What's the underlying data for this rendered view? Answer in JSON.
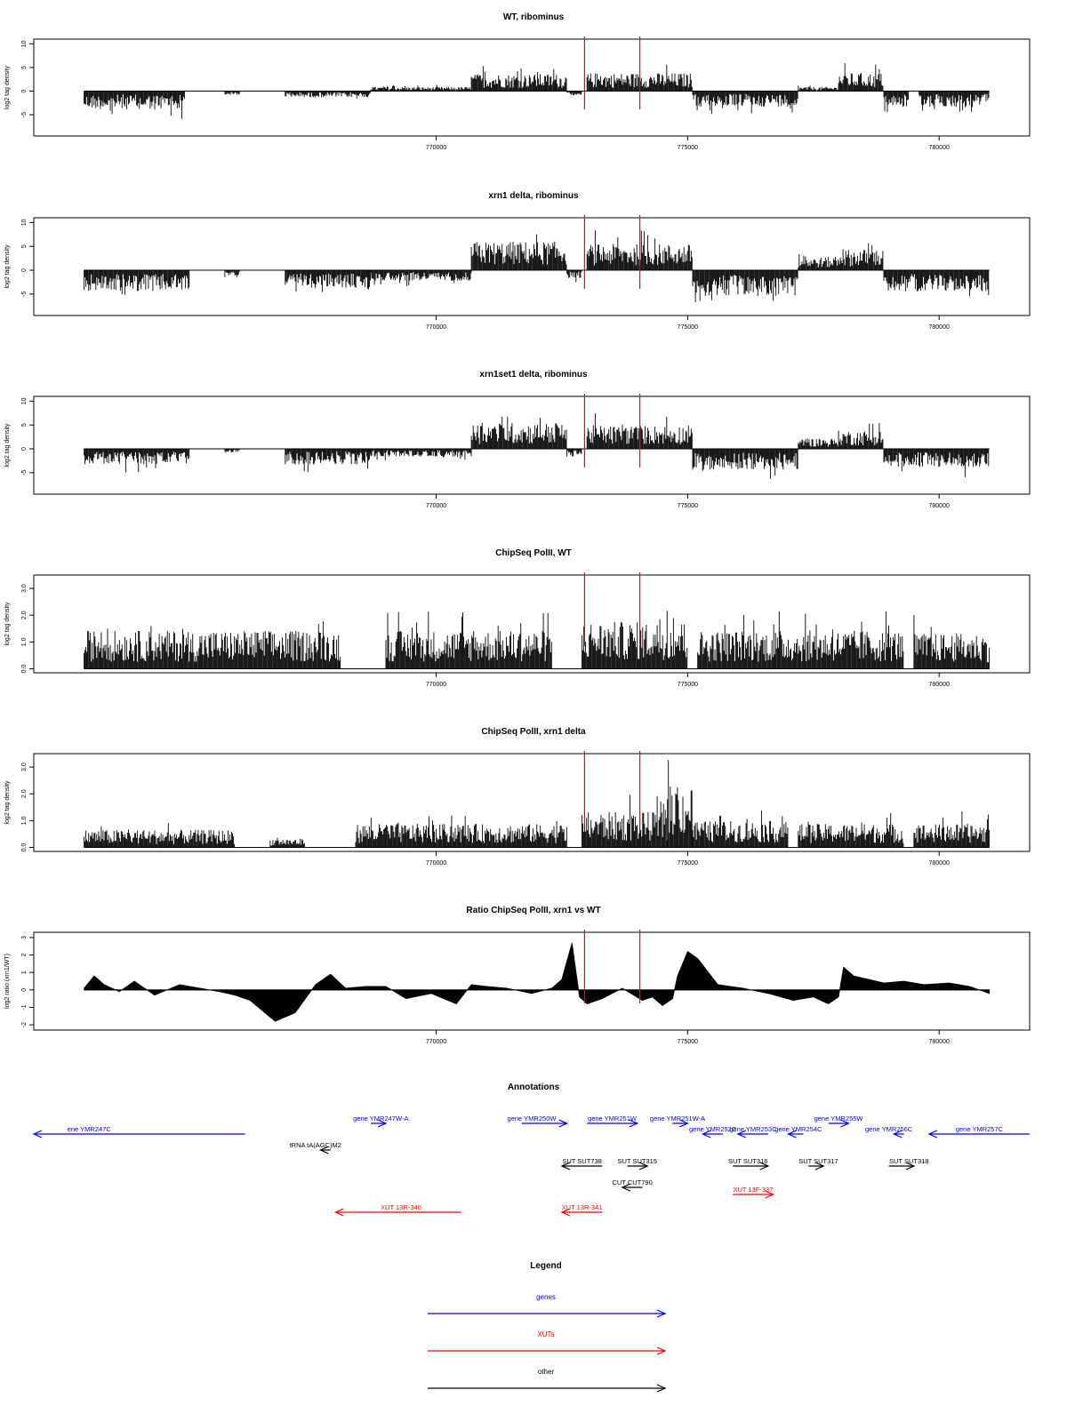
{
  "colors": {
    "marker": "#ff0000",
    "signal": "#000000",
    "gene": "#0000ff",
    "xut": "#ff0000",
    "other": "#000000"
  },
  "x_axis": {
    "range": [
      762000,
      781800
    ],
    "ticks": [
      770000,
      775000,
      780000
    ],
    "tick_labels": [
      "770000",
      "775000",
      "780000"
    ]
  },
  "markers": [
    772950,
    774050
  ],
  "chart_data": [
    {
      "type": "bar",
      "title": "WT, ribominus",
      "ylabel": "log2 tag density",
      "ylim": [
        -9.5,
        11
      ],
      "yticks": [
        10,
        5,
        0,
        -5
      ],
      "yticklabels": [
        "10",
        "5",
        "0",
        "-5"
      ],
      "baseline": 0,
      "segments": [
        {
          "x": [
            763000,
            765000
          ],
          "amp": 3.5,
          "sign": -1
        },
        {
          "x": [
            765800,
            766100
          ],
          "amp": 0.8,
          "sign": -1
        },
        {
          "x": [
            767000,
            768700
          ],
          "amp": 1.2,
          "sign": -1
        },
        {
          "x": [
            768700,
            770700
          ],
          "amp": 0.8,
          "sign": 1
        },
        {
          "x": [
            770700,
            772600
          ],
          "amp": 3.3,
          "sign": 1
        },
        {
          "x": [
            772600,
            772900
          ],
          "amp": 0.8,
          "sign": -1
        },
        {
          "x": [
            773000,
            775100
          ],
          "amp": 3.5,
          "sign": 1
        },
        {
          "x": [
            775100,
            777200
          ],
          "amp": 3.0,
          "sign": -1
        },
        {
          "x": [
            777200,
            778000
          ],
          "amp": 0.8,
          "sign": 1
        },
        {
          "x": [
            778000,
            778900
          ],
          "amp": 3.5,
          "sign": 1
        },
        {
          "x": [
            778900,
            779400
          ],
          "amp": 3.0,
          "sign": -1
        },
        {
          "x": [
            779600,
            781000
          ],
          "amp": 3.0,
          "sign": -1
        }
      ]
    },
    {
      "type": "bar",
      "title": "xrn1 delta, ribominus",
      "ylabel": "log2 tag density",
      "ylim": [
        -9.5,
        11
      ],
      "yticks": [
        10,
        5,
        0,
        -5
      ],
      "yticklabels": [
        "10",
        "5",
        "0",
        "-5"
      ],
      "baseline": 0,
      "segments": [
        {
          "x": [
            763000,
            765100
          ],
          "amp": 4.0,
          "sign": -1
        },
        {
          "x": [
            765800,
            766100
          ],
          "amp": 1.0,
          "sign": -1
        },
        {
          "x": [
            767000,
            768700
          ],
          "amp": 3.5,
          "sign": -1
        },
        {
          "x": [
            768700,
            770700
          ],
          "amp": 2.0,
          "sign": -1
        },
        {
          "x": [
            770700,
            772600
          ],
          "amp": 5.5,
          "sign": 1
        },
        {
          "x": [
            772600,
            772900
          ],
          "amp": 1.5,
          "sign": -1
        },
        {
          "x": [
            773000,
            775100
          ],
          "amp": 5.0,
          "sign": 1
        },
        {
          "x": [
            775100,
            777200
          ],
          "amp": 5.0,
          "sign": -1
        },
        {
          "x": [
            777200,
            778000
          ],
          "amp": 2.5,
          "sign": 1
        },
        {
          "x": [
            778000,
            778900
          ],
          "amp": 4.0,
          "sign": 1
        },
        {
          "x": [
            778900,
            779400
          ],
          "amp": 4.0,
          "sign": -1
        },
        {
          "x": [
            779400,
            781000
          ],
          "amp": 4.0,
          "sign": -1
        }
      ]
    },
    {
      "type": "bar",
      "title": "xrn1set1 delta, ribominus",
      "ylabel": "log2 tag density",
      "ylim": [
        -9.5,
        11
      ],
      "yticks": [
        10,
        5,
        0,
        -5
      ],
      "yticklabels": [
        "10",
        "5",
        "0",
        "-5"
      ],
      "baseline": 0,
      "segments": [
        {
          "x": [
            763000,
            765100
          ],
          "amp": 3.0,
          "sign": -1
        },
        {
          "x": [
            765800,
            766100
          ],
          "amp": 0.8,
          "sign": -1
        },
        {
          "x": [
            767000,
            768700
          ],
          "amp": 3.0,
          "sign": -1
        },
        {
          "x": [
            768700,
            770700
          ],
          "amp": 1.5,
          "sign": -1
        },
        {
          "x": [
            770700,
            772600
          ],
          "amp": 5.0,
          "sign": 1
        },
        {
          "x": [
            772600,
            772900
          ],
          "amp": 1.5,
          "sign": -1
        },
        {
          "x": [
            773000,
            775100
          ],
          "amp": 4.5,
          "sign": 1
        },
        {
          "x": [
            775100,
            777200
          ],
          "amp": 4.0,
          "sign": -1
        },
        {
          "x": [
            777200,
            778000
          ],
          "amp": 2.0,
          "sign": 1
        },
        {
          "x": [
            778000,
            778900
          ],
          "amp": 3.5,
          "sign": 1
        },
        {
          "x": [
            778900,
            779400
          ],
          "amp": 3.5,
          "sign": -1
        },
        {
          "x": [
            779400,
            781000
          ],
          "amp": 3.5,
          "sign": -1
        }
      ]
    },
    {
      "type": "bar",
      "title": "ChipSeq PolII, WT",
      "ylabel": "log2 tag density",
      "ylim": [
        -0.15,
        3.5
      ],
      "yticks": [
        0,
        1,
        2,
        3
      ],
      "yticklabels": [
        "0.0",
        "1.0",
        "2.0",
        "3.0"
      ],
      "baseline": 0,
      "segments": [
        {
          "x": [
            763000,
            768100
          ],
          "amp": 1.3,
          "sign": 1
        },
        {
          "x": [
            769000,
            772300
          ],
          "amp": 1.3,
          "sign": 1
        },
        {
          "x": [
            772900,
            775000
          ],
          "amp": 1.6,
          "sign": 1
        },
        {
          "x": [
            775200,
            779300
          ],
          "amp": 1.3,
          "sign": 1
        },
        {
          "x": [
            779500,
            781000
          ],
          "amp": 1.2,
          "sign": 1
        }
      ]
    },
    {
      "type": "bar",
      "title": "ChipSeq PolII, xrn1 delta",
      "ylabel": "log2 tag density",
      "ylim": [
        -0.15,
        3.5
      ],
      "yticks": [
        0,
        1,
        2,
        3
      ],
      "yticklabels": [
        "0.0",
        "1.0",
        "2.0",
        "3.0"
      ],
      "baseline": 0,
      "segments": [
        {
          "x": [
            763000,
            766000
          ],
          "amp": 0.6,
          "sign": 1
        },
        {
          "x": [
            766700,
            767400
          ],
          "amp": 0.3,
          "sign": 1
        },
        {
          "x": [
            768400,
            772600
          ],
          "amp": 0.8,
          "sign": 1
        },
        {
          "x": [
            772900,
            774600
          ],
          "amp": 1.2,
          "sign": 1
        },
        {
          "x": [
            774600,
            775100
          ],
          "amp": 2.1,
          "sign": 1
        },
        {
          "x": [
            775100,
            777000
          ],
          "amp": 0.9,
          "sign": 1
        },
        {
          "x": [
            777200,
            779300
          ],
          "amp": 0.8,
          "sign": 1
        },
        {
          "x": [
            779500,
            781000
          ],
          "amp": 0.8,
          "sign": 1
        }
      ]
    },
    {
      "type": "area",
      "title": "Ratio ChipSeq PolII, xrn1 vs WT",
      "ylabel": "log2 ratio (xrn1/WT)",
      "ylim": [
        -2.3,
        3.3
      ],
      "yticks": [
        -2,
        -1,
        0,
        1,
        2,
        3
      ],
      "yticklabels": [
        "-2",
        "-1",
        "0",
        "1",
        "2",
        "3"
      ],
      "baseline": 0,
      "x": [
        763000,
        763200,
        763400,
        763700,
        764000,
        764400,
        764900,
        765300,
        765700,
        766000,
        766300,
        766800,
        767200,
        767600,
        767900,
        768200,
        768600,
        769000,
        769400,
        769900,
        770400,
        770700,
        771000,
        771400,
        771900,
        772300,
        772500,
        772700,
        772850,
        773000,
        773300,
        773700,
        774100,
        774300,
        774500,
        774700,
        774800,
        775000,
        775200,
        775600,
        776100,
        776600,
        777100,
        777500,
        777800,
        778000,
        778100,
        778300,
        778600,
        778900,
        779300,
        779700,
        780200,
        780600,
        781000
      ],
      "y": [
        0.1,
        0.8,
        0.3,
        -0.1,
        0.5,
        -0.3,
        0.3,
        0.1,
        -0.1,
        -0.3,
        -0.6,
        -1.8,
        -1.3,
        0.3,
        0.9,
        0.1,
        0.2,
        0.2,
        -0.5,
        -0.2,
        -0.8,
        0.3,
        0.2,
        0.1,
        -0.2,
        0.1,
        0.6,
        2.7,
        -0.4,
        -0.8,
        -0.5,
        0.1,
        -0.6,
        -0.4,
        -0.9,
        -0.5,
        0.8,
        2.2,
        1.8,
        0.3,
        0.1,
        -0.2,
        -0.6,
        -0.4,
        -0.8,
        -0.4,
        1.3,
        0.8,
        0.6,
        0.4,
        0.5,
        0.3,
        0.4,
        0.2,
        -0.2
      ]
    }
  ],
  "annotations": {
    "title": "Annotations",
    "items": [
      {
        "label": "ene YMR247C",
        "kind": "gene",
        "dir": "left",
        "x": [
          762000,
          766200
        ],
        "row": 1,
        "label_x": 763100
      },
      {
        "label": "gene YMR247W-A",
        "kind": "gene",
        "dir": "right",
        "x": [
          768700,
          769000
        ],
        "row": 0,
        "label_x": 768900
      },
      {
        "label": "tRNA tA(AGC)M2",
        "kind": "other",
        "dir": "left",
        "x": [
          767700,
          767900
        ],
        "row": 2,
        "label_x": 767600
      },
      {
        "label": "gene YMR250W",
        "kind": "gene",
        "dir": "right",
        "x": [
          771700,
          772600
        ],
        "row": 0,
        "label_x": 771900
      },
      {
        "label": "gene YMR251W",
        "kind": "gene",
        "dir": "right",
        "x": [
          773000,
          774000
        ],
        "row": 0,
        "label_x": 773500
      },
      {
        "label": "gene YMR251W-A",
        "kind": "gene",
        "dir": "right",
        "x": [
          774700,
          775000
        ],
        "row": 0,
        "label_x": 774800
      },
      {
        "label": "gene YMR252C",
        "kind": "gene",
        "dir": "left",
        "x": [
          775300,
          775700
        ],
        "row": 1,
        "label_x": 775500
      },
      {
        "label": "gene YMR253C",
        "kind": "gene",
        "dir": "left",
        "x": [
          776000,
          776600
        ],
        "row": 1,
        "label_x": 776300
      },
      {
        "label": "gene YMR254C",
        "kind": "gene",
        "dir": "left",
        "x": [
          777000,
          777300
        ],
        "row": 1,
        "label_x": 777200
      },
      {
        "label": "gene YMR255W",
        "kind": "gene",
        "dir": "right",
        "x": [
          777800,
          778200
        ],
        "row": 0,
        "label_x": 778000
      },
      {
        "label": "gene YMR256C",
        "kind": "gene",
        "dir": "left",
        "x": [
          779100,
          779300
        ],
        "row": 1,
        "label_x": 779000
      },
      {
        "label": "gene YMR257C",
        "kind": "gene",
        "dir": "left",
        "x": [
          779800,
          781800
        ],
        "row": 1,
        "label_x": 780800
      },
      {
        "label": "SUT SUT738",
        "kind": "other",
        "dir": "left",
        "x": [
          772500,
          773300
        ],
        "row": 3,
        "label_x": 772900
      },
      {
        "label": "SUT SUT315",
        "kind": "other",
        "dir": "right",
        "x": [
          773800,
          774200
        ],
        "row": 3,
        "label_x": 774000
      },
      {
        "label": "SUT SUT316",
        "kind": "other",
        "dir": "right",
        "x": [
          775900,
          776600
        ],
        "row": 3,
        "label_x": 776200
      },
      {
        "label": "SUT SUT317",
        "kind": "other",
        "dir": "right",
        "x": [
          777400,
          777700
        ],
        "row": 3,
        "label_x": 777600
      },
      {
        "label": "SUT SUT318",
        "kind": "other",
        "dir": "right",
        "x": [
          779000,
          779500
        ],
        "row": 3,
        "label_x": 779400
      },
      {
        "label": "CUT CUT790",
        "kind": "other",
        "dir": "left",
        "x": [
          773700,
          774100
        ],
        "row": 4,
        "label_x": 773900
      },
      {
        "label": "XUT 13F-337",
        "kind": "xut",
        "dir": "right",
        "x": [
          775900,
          776700
        ],
        "row": 5,
        "label_x": 776300
      },
      {
        "label": "XUT 13R-340",
        "kind": "xut",
        "dir": "left",
        "x": [
          768000,
          770500
        ],
        "row": 6,
        "label_x": 769300
      },
      {
        "label": "XUT 13R-341",
        "kind": "xut",
        "dir": "left",
        "x": [
          772500,
          773300
        ],
        "row": 6,
        "label_x": 772900
      }
    ]
  },
  "legend": {
    "title": "Legend",
    "items": [
      {
        "label": "genes",
        "kind": "gene"
      },
      {
        "label": "XUTs",
        "kind": "xut"
      },
      {
        "label": "other",
        "kind": "other"
      }
    ]
  }
}
